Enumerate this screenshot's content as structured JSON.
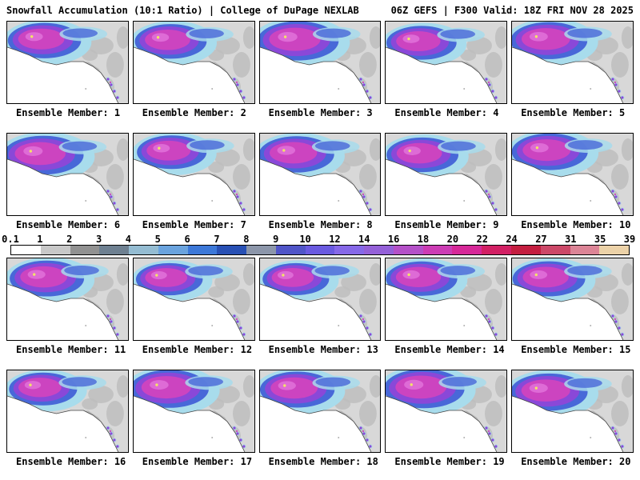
{
  "header": {
    "left_title": "Snowfall Accumulation (10:1 Ratio) | College of DuPage NEXLAB",
    "right_title": "06Z GEFS | F300 Valid: 18Z FRI NOV 28 2025"
  },
  "panels": {
    "label_prefix": "Ensemble Member:",
    "rows": [
      [
        1,
        2,
        3,
        4,
        5
      ],
      [
        6,
        7,
        8,
        9,
        10
      ],
      [
        11,
        12,
        13,
        14,
        15
      ],
      [
        16,
        17,
        18,
        19,
        20
      ]
    ]
  },
  "colorbar": {
    "ticks": [
      "0.1",
      "1",
      "2",
      "3",
      "4",
      "5",
      "6",
      "7",
      "8",
      "9",
      "10",
      "12",
      "14",
      "16",
      "18",
      "20",
      "22",
      "24",
      "27",
      "31",
      "35",
      "39"
    ],
    "segment_colors": [
      "#ffffff",
      "#c8c8c8",
      "#919191",
      "#6e8091",
      "#94bcd2",
      "#6aa3de",
      "#3c78d8",
      "#2850b4",
      "#8c96aa",
      "#5055c8",
      "#6a5ae0",
      "#8668e8",
      "#9460d8",
      "#b450c8",
      "#cc3cb4",
      "#d62898",
      "#d22064",
      "#c41e40",
      "#cc4868",
      "#dc8496",
      "#ecd2a8"
    ]
  },
  "map": {
    "ocean": "#ffffff",
    "land": "#d8d8d8",
    "terrain": "#bdbdbd",
    "ridge": "#ababab",
    "coast": "#444444",
    "snow_trace": "#a8dcec",
    "snow_light": "#4868d8",
    "snow_moderate": "#8a48d8",
    "snow_heavy": "#cc44c0",
    "snow_extreme": "#e070d8",
    "snow_max": "#f2e468",
    "island": "#b0b0b0"
  }
}
